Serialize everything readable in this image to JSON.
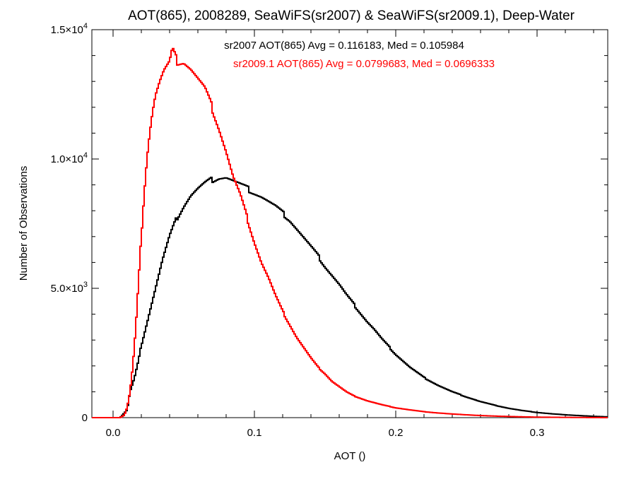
{
  "chart_data": {
    "type": "line",
    "title": "AOT(865), 2008289, SeaWiFS(sr2007) & SeaWiFS(sr2009.1), Deep-Water",
    "xlabel": "AOT ()",
    "ylabel": "Number of Observations",
    "xlim": [
      -0.015,
      0.35
    ],
    "ylim": [
      0,
      15000
    ],
    "x_ticks": [
      {
        "value": 0.0,
        "label": "0.0"
      },
      {
        "value": 0.1,
        "label": "0.1"
      },
      {
        "value": 0.2,
        "label": "0.2"
      },
      {
        "value": 0.3,
        "label": "0.3"
      }
    ],
    "y_ticks": [
      {
        "value": 0,
        "label": "0",
        "mantissa": "",
        "exp": ""
      },
      {
        "value": 5000,
        "label": "5.0×10³",
        "mantissa": "5.0×10",
        "exp": "3"
      },
      {
        "value": 10000,
        "label": "1.0×10⁴",
        "mantissa": "1.0×10",
        "exp": "4"
      },
      {
        "value": 15000,
        "label": "1.5×10⁴",
        "mantissa": "1.5×10",
        "exp": "4"
      }
    ],
    "annotations": [
      {
        "text": "sr2007 AOT(865) Avg = 0.116183, Med = 0.105984",
        "color": "#000000"
      },
      {
        "text": "sr2009.1 AOT(865) Avg = 0.0799683, Med = 0.0696333",
        "color": "#ff0000"
      }
    ],
    "series": [
      {
        "color": "#000000",
        "x": [
          -0.015,
          0.005,
          0.01,
          0.012,
          0.015,
          0.018,
          0.02,
          0.025,
          0.03,
          0.035,
          0.04,
          0.045,
          0.05,
          0.055,
          0.06,
          0.065,
          0.07,
          0.075,
          0.08,
          0.085,
          0.09,
          0.095,
          0.1,
          0.105,
          0.11,
          0.115,
          0.12,
          0.125,
          0.13,
          0.135,
          0.14,
          0.145,
          0.15,
          0.155,
          0.16,
          0.165,
          0.17,
          0.175,
          0.18,
          0.185,
          0.19,
          0.195,
          0.2,
          0.205,
          0.21,
          0.22,
          0.23,
          0.24,
          0.25,
          0.26,
          0.27,
          0.28,
          0.29,
          0.3,
          0.31,
          0.32,
          0.33,
          0.34,
          0.35
        ],
        "values": [
          0,
          0,
          300,
          1000,
          1500,
          2200,
          2800,
          3900,
          5000,
          6100,
          7000,
          7700,
          8200,
          8600,
          8850,
          9050,
          9200,
          9300,
          9300,
          9150,
          9000,
          8850,
          8700,
          8550,
          8350,
          8150,
          7900,
          7650,
          7300,
          6950,
          6600,
          6250,
          5850,
          5500,
          5150,
          4750,
          4400,
          4050,
          3700,
          3400,
          3050,
          2750,
          2450,
          2200,
          1950,
          1550,
          1250,
          1000,
          800,
          620,
          480,
          360,
          270,
          200,
          150,
          110,
          80,
          50,
          30
        ]
      },
      {
        "color": "#ff0000",
        "x": [
          -0.015,
          0.005,
          0.008,
          0.01,
          0.012,
          0.014,
          0.016,
          0.018,
          0.02,
          0.022,
          0.024,
          0.026,
          0.028,
          0.03,
          0.033,
          0.036,
          0.04,
          0.042,
          0.045,
          0.05,
          0.055,
          0.06,
          0.065,
          0.07,
          0.075,
          0.08,
          0.085,
          0.09,
          0.095,
          0.1,
          0.105,
          0.11,
          0.115,
          0.12,
          0.125,
          0.13,
          0.135,
          0.14,
          0.145,
          0.15,
          0.155,
          0.16,
          0.165,
          0.17,
          0.18,
          0.19,
          0.2,
          0.21,
          0.22,
          0.23,
          0.24,
          0.25,
          0.26,
          0.27,
          0.28,
          0.29,
          0.3,
          0.32,
          0.35
        ],
        "values": [
          0,
          0,
          100,
          400,
          1000,
          2000,
          3400,
          5200,
          7000,
          8700,
          10100,
          11100,
          11900,
          12500,
          13000,
          13400,
          13700,
          14200,
          13800,
          13800,
          13500,
          13100,
          12700,
          12000,
          11200,
          10300,
          9300,
          8600,
          7700,
          6800,
          6000,
          5400,
          4700,
          4100,
          3600,
          3100,
          2700,
          2300,
          1950,
          1700,
          1400,
          1200,
          1000,
          850,
          650,
          500,
          380,
          300,
          230,
          180,
          140,
          110,
          80,
          60,
          45,
          30,
          20,
          10,
          0
        ]
      }
    ]
  }
}
